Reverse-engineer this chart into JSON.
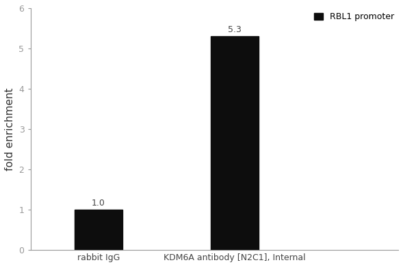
{
  "categories": [
    "rabbit IgG",
    "KDM6A antibody [N2C1], Internal"
  ],
  "values": [
    1.0,
    5.3
  ],
  "bar_color": "#0d0d0d",
  "bar_labels": [
    "1.0",
    "5.3"
  ],
  "ylabel": "fold enrichment",
  "ylim": [
    0,
    6
  ],
  "yticks": [
    0,
    1,
    2,
    3,
    4,
    5,
    6
  ],
  "legend_label": "RBL1 promoter",
  "legend_color": "#0d0d0d",
  "background_color": "#ffffff",
  "bar_width": 0.35,
  "label_fontsize": 9,
  "tick_fontsize": 9,
  "ylabel_fontsize": 11
}
